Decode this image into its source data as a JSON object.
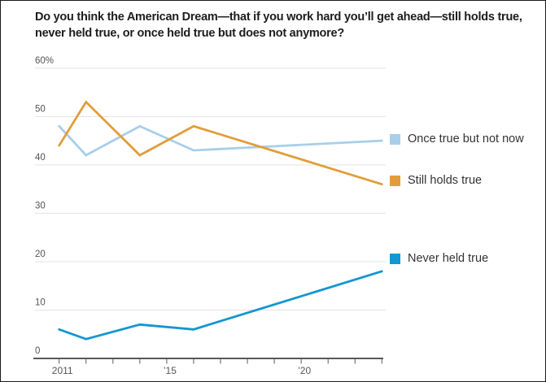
{
  "title": "Do you think the American Dream—that if you work hard you’ll get ahead—still holds true, never held true, or once held true but does not anymore?",
  "colors": {
    "once_true": "#a7cfe9",
    "still_holds": "#e29d3a",
    "never_held": "#1396d2",
    "grid": "#e3e3e3",
    "axis": "#58595b",
    "tick_text": "#555555",
    "title_text": "#1d1d1d"
  },
  "chart_data": {
    "type": "line",
    "x": [
      2011,
      2012,
      2014,
      2016,
      2023
    ],
    "series": [
      {
        "name": "Once true but not now",
        "color": "#a7cfe9",
        "values": [
          48,
          42,
          48,
          43,
          45
        ]
      },
      {
        "name": "Still holds true",
        "color": "#e29d3a",
        "values": [
          44,
          53,
          42,
          48,
          36
        ]
      },
      {
        "name": "Never held true",
        "color": "#1396d2",
        "values": [
          6,
          4,
          7,
          6,
          18
        ]
      }
    ],
    "unit": "%",
    "ylim": [
      0,
      60
    ],
    "y_ticks": [
      {
        "value": 0,
        "label": "0"
      },
      {
        "value": 10,
        "label": "10"
      },
      {
        "value": 20,
        "label": "20"
      },
      {
        "value": 30,
        "label": "30"
      },
      {
        "value": 40,
        "label": "40"
      },
      {
        "value": 50,
        "label": "50"
      },
      {
        "value": 60,
        "label": "60%"
      }
    ],
    "x_minor_ticks": [
      2011,
      2012,
      2013,
      2014,
      2015,
      2016,
      2017,
      2018,
      2019,
      2020,
      2021,
      2022,
      2023
    ],
    "x_tick_labels": [
      {
        "x": 2011,
        "label": "2011"
      },
      {
        "x": 2015,
        "label": "’15"
      },
      {
        "x": 2020,
        "label": "’20"
      }
    ],
    "grid": true,
    "legend_position": "right"
  }
}
